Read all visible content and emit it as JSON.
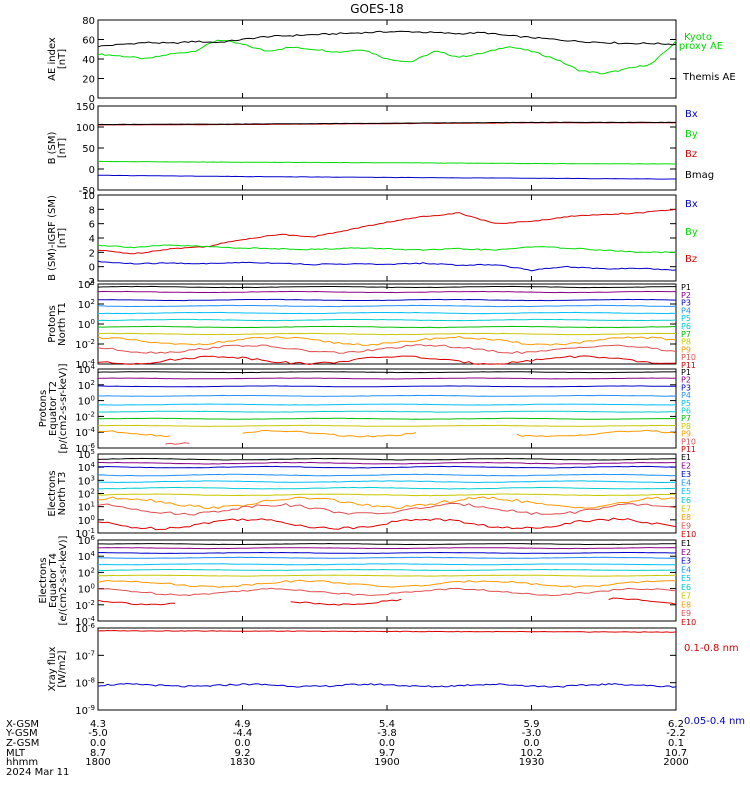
{
  "title": "GOES-18",
  "colors": {
    "black": "#000000",
    "green": "#00dd00",
    "red": "#dd0000",
    "blue": "#0000cc",
    "darkred": "#8b0000",
    "yellow": "#e8e000"
  },
  "chart_data": [
    {
      "type": "line",
      "ylabel": "AE index\n[nT]",
      "ylim": [
        0,
        80
      ],
      "yticks": [
        "0",
        "20",
        "40",
        "60",
        "80"
      ],
      "legend": [
        {
          "label": "Kyoto\nproxy AE",
          "color": "#00dd00"
        },
        {
          "label": "Themis AE",
          "color": "#000000"
        }
      ],
      "series": [
        {
          "name": "Kyoto proxy AE",
          "color": "#00dd00",
          "x_hours": [
            18.0,
            18.08,
            18.17,
            18.25,
            18.33,
            18.42,
            18.5,
            18.58,
            18.67,
            18.75,
            18.83,
            18.92,
            19.0,
            19.08,
            19.17,
            19.25,
            19.33,
            19.42,
            19.5,
            19.58,
            19.67,
            19.75,
            19.83,
            19.92,
            20.0
          ],
          "values": [
            45,
            43,
            40,
            45,
            48,
            60,
            55,
            48,
            52,
            50,
            47,
            50,
            40,
            37,
            48,
            42,
            46,
            53,
            48,
            40,
            28,
            25,
            30,
            35,
            58
          ]
        },
        {
          "name": "Themis AE",
          "color": "#000000",
          "x_hours": [
            18.0,
            18.08,
            18.17,
            18.25,
            18.33,
            18.42,
            18.5,
            18.58,
            18.67,
            18.75,
            18.83,
            18.92,
            19.0,
            19.08,
            19.17,
            19.25,
            19.33,
            19.42,
            19.5,
            19.58,
            19.67,
            19.75,
            19.83,
            19.92,
            20.0
          ],
          "values": [
            53,
            55,
            57,
            56,
            58,
            57,
            60,
            63,
            64,
            65,
            66,
            67,
            68,
            68,
            67,
            66,
            67,
            64,
            62,
            60,
            58,
            57,
            56,
            56,
            55
          ]
        }
      ]
    },
    {
      "type": "line",
      "ylabel": "B (SM)\n[nT]",
      "ylim": [
        -50,
        150
      ],
      "yticks": [
        "-50",
        "0",
        "50",
        "100",
        "150"
      ],
      "legend": [
        {
          "label": "Bx",
          "color": "#0000cc"
        },
        {
          "label": "By",
          "color": "#00dd00"
        },
        {
          "label": "Bz",
          "color": "#dd0000"
        },
        {
          "label": "Bmag",
          "color": "#000000"
        }
      ],
      "series": [
        {
          "name": "Bz",
          "color": "#dd0000",
          "values": [
            105,
            106,
            108,
            110,
            110
          ]
        },
        {
          "name": "Bmag",
          "color": "#000000",
          "values": [
            106,
            107,
            109,
            111,
            111
          ]
        },
        {
          "name": "By",
          "color": "#00dd00",
          "values": [
            18,
            16,
            15,
            13,
            12
          ]
        },
        {
          "name": "Bx",
          "color": "#0000cc",
          "values": [
            -15,
            -18,
            -20,
            -22,
            -24
          ]
        }
      ]
    },
    {
      "type": "line",
      "ylabel": "B (SM)-IGRF (SM)\n[nT]",
      "ylim": [
        -2,
        10
      ],
      "yticks": [
        "-2",
        "0",
        "2",
        "4",
        "6",
        "8",
        "10"
      ],
      "legend": [
        {
          "label": "Bx",
          "color": "#0000cc"
        },
        {
          "label": "By",
          "color": "#00dd00"
        },
        {
          "label": "Bz",
          "color": "#dd0000"
        }
      ],
      "series": [
        {
          "name": "Bz",
          "color": "#dd0000",
          "values": [
            2.3,
            1.8,
            2.5,
            2.8,
            3.8,
            4.5,
            4.2,
            5.2,
            6.2,
            7.0,
            7.5,
            6.0,
            6.3,
            7.0,
            7.3,
            7.5,
            8.0
          ]
        },
        {
          "name": "By",
          "color": "#00dd00",
          "values": [
            3.0,
            2.7,
            3.0,
            2.8,
            2.6,
            2.5,
            2.4,
            2.6,
            2.5,
            2.3,
            2.5,
            2.3,
            2.8,
            2.6,
            2.3,
            2.0,
            2.0
          ]
        },
        {
          "name": "Bx",
          "color": "#0000cc",
          "values": [
            0.7,
            0.4,
            0.5,
            0.4,
            0.6,
            0.5,
            0.3,
            0.4,
            0.3,
            0.5,
            0.2,
            0.3,
            -0.5,
            0.0,
            -0.3,
            -0.2,
            -0.5
          ]
        }
      ]
    },
    {
      "type": "line",
      "ylabel": "Protons\nNorth T1",
      "yscale": "log",
      "yticks": [
        "10-4",
        "10-2",
        "100",
        "102",
        "104"
      ],
      "channels": [
        "P1",
        "P2",
        "P3",
        "P4",
        "P5",
        "P6",
        "P7",
        "P8",
        "P9",
        "P10",
        "P11"
      ]
    },
    {
      "type": "line",
      "ylabel": "Protons\nEquator T2\n[p/(cm2-s-sr-keV)]",
      "yscale": "log",
      "yticks": [
        "10-6",
        "10-4",
        "10-2",
        "100",
        "102",
        "104"
      ],
      "channels": [
        "P1",
        "P2",
        "P3",
        "P4",
        "P5",
        "P6",
        "P7",
        "P8",
        "P9",
        "P10",
        "P11"
      ]
    },
    {
      "type": "line",
      "ylabel": "Electrons\nNorth T3",
      "yscale": "log",
      "yticks": [
        "10-1",
        "100",
        "101",
        "102",
        "103",
        "104",
        "105"
      ],
      "channels": [
        "E1",
        "E2",
        "E3",
        "E4",
        "E5",
        "E6",
        "E7",
        "E8",
        "E9",
        "E10"
      ]
    },
    {
      "type": "line",
      "ylabel": "Electrons\nEquator T4\n[e/(cm2-s-sr-keV)]",
      "yscale": "log",
      "yticks": [
        "10-4",
        "10-2",
        "100",
        "102",
        "104",
        "106"
      ],
      "channels": [
        "E1",
        "E2",
        "E3",
        "E4",
        "E5",
        "E6",
        "E7",
        "E8",
        "E9",
        "E10"
      ]
    },
    {
      "type": "line",
      "ylabel": "Xray flux\n[W/m2]",
      "yscale": "log",
      "yticks": [
        "10-9",
        "10-8",
        "10-7",
        "10-6"
      ],
      "legend": [
        {
          "label": "0.1-0.8 nm",
          "color": "#dd0000"
        },
        {
          "label": "0.05-0.4 nm",
          "color": "#0000cc"
        }
      ]
    }
  ],
  "xaxis": {
    "rows": [
      {
        "label": "X-GSM",
        "values": [
          "4.3",
          "4.9",
          "5.4",
          "5.9",
          "6.2"
        ]
      },
      {
        "label": "Y-GSM",
        "values": [
          "-5.0",
          "-4.4",
          "-3.8",
          "-3.0",
          "-2.2"
        ]
      },
      {
        "label": "Z-GSM",
        "values": [
          "0.0",
          "0.0",
          "0.0",
          "0.0",
          "0.1"
        ]
      },
      {
        "label": "MLT",
        "values": [
          "8.7",
          "9.2",
          "9.7",
          "10.2",
          "10.7"
        ]
      },
      {
        "label": "hhmm",
        "values": [
          "1800",
          "1830",
          "1900",
          "1930",
          "2000"
        ]
      }
    ],
    "date": "2024 Mar 11"
  }
}
